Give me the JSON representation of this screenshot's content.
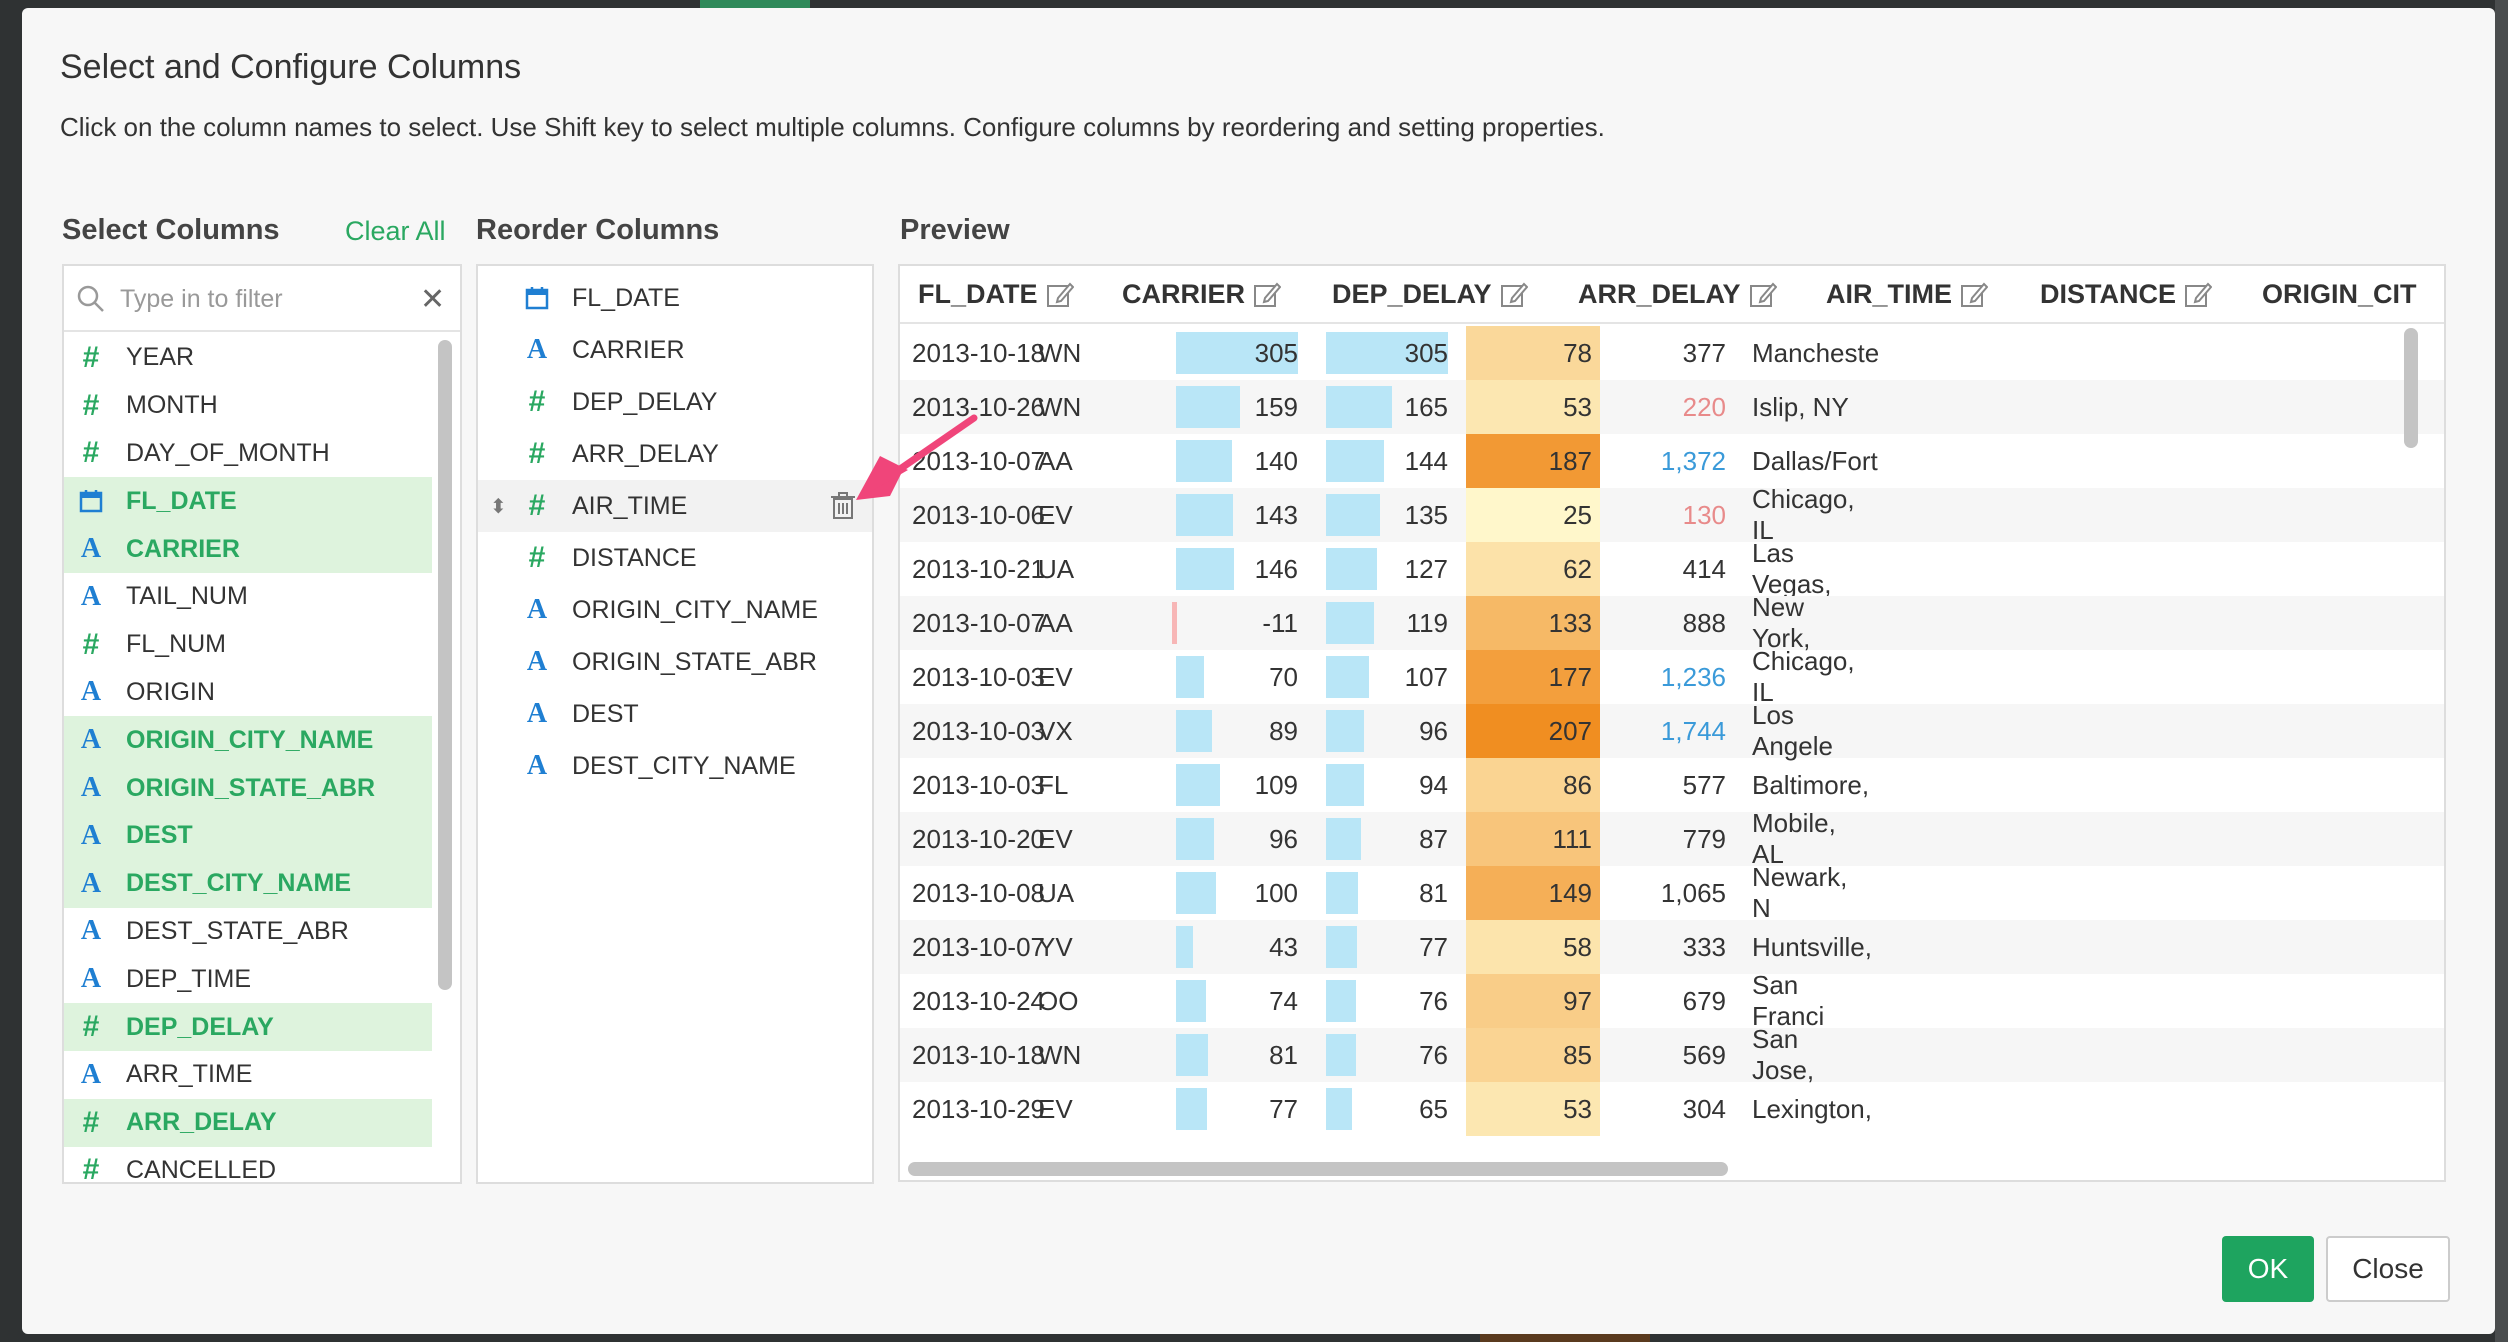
{
  "modal": {
    "title": "Select and Configure Columns",
    "description": "Click on the column names to select. Use Shift key to select multiple columns. Configure columns by reordering and setting properties."
  },
  "select_columns": {
    "label": "Select Columns",
    "clear_all": "Clear All",
    "filter_placeholder": "Type in to filter",
    "items": [
      {
        "name": "YEAR",
        "type": "number",
        "selected": false
      },
      {
        "name": "MONTH",
        "type": "number",
        "selected": false
      },
      {
        "name": "DAY_OF_MONTH",
        "type": "number",
        "selected": false
      },
      {
        "name": "FL_DATE",
        "type": "date",
        "selected": true
      },
      {
        "name": "CARRIER",
        "type": "string",
        "selected": true
      },
      {
        "name": "TAIL_NUM",
        "type": "string",
        "selected": false
      },
      {
        "name": "FL_NUM",
        "type": "number",
        "selected": false
      },
      {
        "name": "ORIGIN",
        "type": "string",
        "selected": false
      },
      {
        "name": "ORIGIN_CITY_NAME",
        "type": "string",
        "selected": true
      },
      {
        "name": "ORIGIN_STATE_ABR",
        "type": "string",
        "selected": true
      },
      {
        "name": "DEST",
        "type": "string",
        "selected": true
      },
      {
        "name": "DEST_CITY_NAME",
        "type": "string",
        "selected": true
      },
      {
        "name": "DEST_STATE_ABR",
        "type": "string",
        "selected": false
      },
      {
        "name": "DEP_TIME",
        "type": "string",
        "selected": false
      },
      {
        "name": "DEP_DELAY",
        "type": "number",
        "selected": true
      },
      {
        "name": "ARR_TIME",
        "type": "string",
        "selected": false
      },
      {
        "name": "ARR_DELAY",
        "type": "number",
        "selected": true
      },
      {
        "name": "CANCELLED",
        "type": "number",
        "selected": false
      }
    ]
  },
  "reorder_columns": {
    "label": "Reorder Columns",
    "items": [
      {
        "name": "FL_DATE",
        "type": "date"
      },
      {
        "name": "CARRIER",
        "type": "string"
      },
      {
        "name": "DEP_DELAY",
        "type": "number"
      },
      {
        "name": "ARR_DELAY",
        "type": "number"
      },
      {
        "name": "AIR_TIME",
        "type": "number",
        "active": true
      },
      {
        "name": "DISTANCE",
        "type": "number"
      },
      {
        "name": "ORIGIN_CITY_NAME",
        "type": "string"
      },
      {
        "name": "ORIGIN_STATE_ABR",
        "type": "string"
      },
      {
        "name": "DEST",
        "type": "string"
      },
      {
        "name": "DEST_CITY_NAME",
        "type": "string"
      }
    ]
  },
  "preview": {
    "label": "Preview",
    "headers": [
      "FL_DATE",
      "CARRIER",
      "DEP_DELAY",
      "ARR_DELAY",
      "AIR_TIME",
      "DISTANCE",
      "ORIGIN_CIT"
    ],
    "rows": [
      {
        "fl_date": "2013-10-18",
        "carrier": "WN",
        "dep_delay": 305,
        "arr_delay": 305,
        "air_time": 78,
        "distance": "377",
        "distance_color": "normal",
        "origin_city": "Mancheste"
      },
      {
        "fl_date": "2013-10-26",
        "carrier": "WN",
        "dep_delay": 159,
        "arr_delay": 165,
        "air_time": 53,
        "distance": "220",
        "distance_color": "low",
        "origin_city": "Islip, NY"
      },
      {
        "fl_date": "2013-10-07",
        "carrier": "AA",
        "dep_delay": 140,
        "arr_delay": 144,
        "air_time": 187,
        "distance": "1,372",
        "distance_color": "high",
        "origin_city": "Dallas/Fort"
      },
      {
        "fl_date": "2013-10-06",
        "carrier": "EV",
        "dep_delay": 143,
        "arr_delay": 135,
        "air_time": 25,
        "distance": "130",
        "distance_color": "low",
        "origin_city": "Chicago, IL"
      },
      {
        "fl_date": "2013-10-21",
        "carrier": "UA",
        "dep_delay": 146,
        "arr_delay": 127,
        "air_time": 62,
        "distance": "414",
        "distance_color": "normal",
        "origin_city": "Las Vegas,"
      },
      {
        "fl_date": "2013-10-07",
        "carrier": "AA",
        "dep_delay": -11,
        "arr_delay": 119,
        "air_time": 133,
        "distance": "888",
        "distance_color": "normal",
        "origin_city": "New York,"
      },
      {
        "fl_date": "2013-10-03",
        "carrier": "EV",
        "dep_delay": 70,
        "arr_delay": 107,
        "air_time": 177,
        "distance": "1,236",
        "distance_color": "high",
        "origin_city": "Chicago, IL"
      },
      {
        "fl_date": "2013-10-03",
        "carrier": "VX",
        "dep_delay": 89,
        "arr_delay": 96,
        "air_time": 207,
        "distance": "1,744",
        "distance_color": "high",
        "origin_city": "Los Angele"
      },
      {
        "fl_date": "2013-10-03",
        "carrier": "FL",
        "dep_delay": 109,
        "arr_delay": 94,
        "air_time": 86,
        "distance": "577",
        "distance_color": "normal",
        "origin_city": "Baltimore,"
      },
      {
        "fl_date": "2013-10-20",
        "carrier": "EV",
        "dep_delay": 96,
        "arr_delay": 87,
        "air_time": 111,
        "distance": "779",
        "distance_color": "normal",
        "origin_city": "Mobile, AL"
      },
      {
        "fl_date": "2013-10-08",
        "carrier": "UA",
        "dep_delay": 100,
        "arr_delay": 81,
        "air_time": 149,
        "distance": "1,065",
        "distance_color": "normal",
        "origin_city": "Newark, N"
      },
      {
        "fl_date": "2013-10-07",
        "carrier": "YV",
        "dep_delay": 43,
        "arr_delay": 77,
        "air_time": 58,
        "distance": "333",
        "distance_color": "normal",
        "origin_city": "Huntsville,"
      },
      {
        "fl_date": "2013-10-24",
        "carrier": "OO",
        "dep_delay": 74,
        "arr_delay": 76,
        "air_time": 97,
        "distance": "679",
        "distance_color": "normal",
        "origin_city": "San Franci"
      },
      {
        "fl_date": "2013-10-18",
        "carrier": "WN",
        "dep_delay": 81,
        "arr_delay": 76,
        "air_time": 85,
        "distance": "569",
        "distance_color": "normal",
        "origin_city": "San Jose,"
      },
      {
        "fl_date": "2013-10-29",
        "carrier": "EV",
        "dep_delay": 77,
        "arr_delay": 65,
        "air_time": 53,
        "distance": "304",
        "distance_color": "normal",
        "origin_city": "Lexington,"
      }
    ]
  },
  "buttons": {
    "ok": "OK",
    "close": "Close"
  },
  "colors": {
    "accent": "#1ea45f",
    "select_bg": "#def3dd",
    "bar": "#b9e6f7",
    "link_blue": "#3a9ad9",
    "low_red": "#e88a8a"
  }
}
